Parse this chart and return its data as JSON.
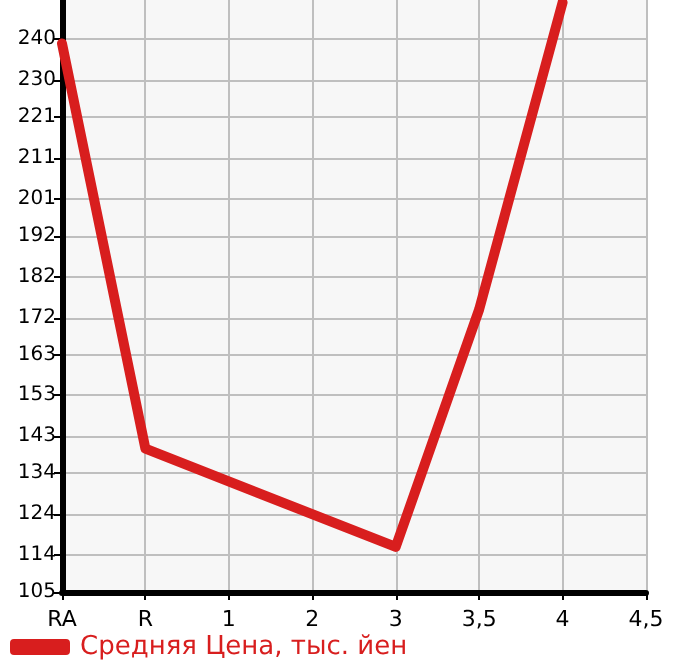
{
  "chart_data": {
    "type": "line",
    "categories": [
      "RA",
      "R",
      "1",
      "2",
      "3",
      "3,5",
      "4",
      "4,5"
    ],
    "series": [
      {
        "name": "Средняя Цена, тыс. йен",
        "color": "#d81e1e",
        "values": [
          239,
          140,
          null,
          null,
          116,
          174,
          249,
          null
        ]
      }
    ],
    "ylim": [
      105,
      249.6
    ],
    "yticks": [
      105,
      114,
      124,
      134,
      143,
      153,
      163,
      172,
      182,
      192,
      201,
      211,
      221,
      230,
      240
    ],
    "grid": true,
    "legend": "bottom left",
    "marker": "none",
    "line_style": "solid"
  }
}
